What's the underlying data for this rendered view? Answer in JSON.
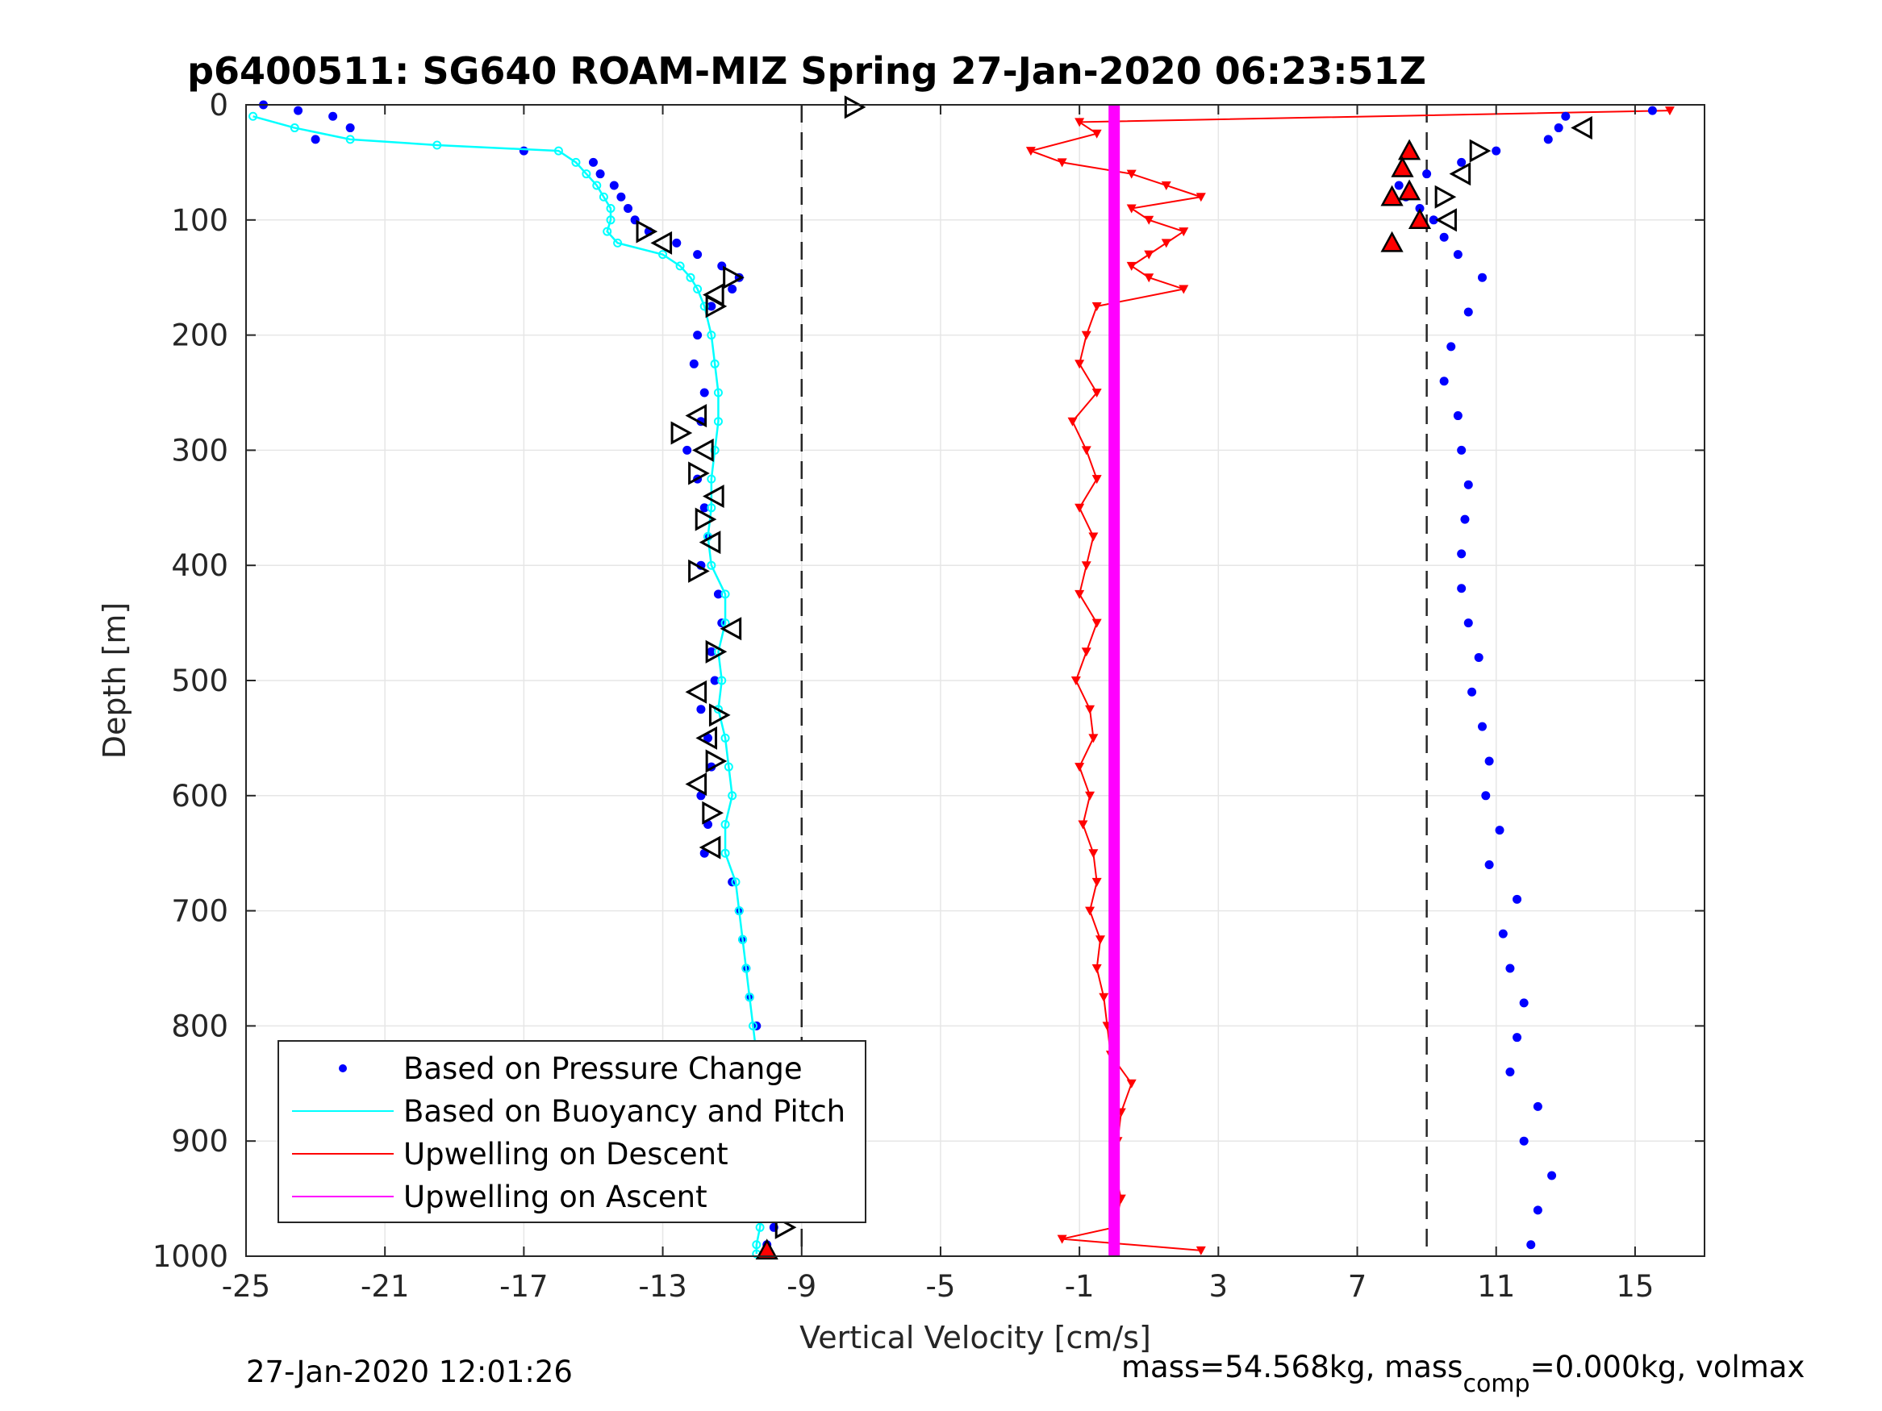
{
  "chart_data": {
    "type": "scatter",
    "title": "p6400511: SG640 ROAM-MIZ Spring 27-Jan-2020 06:23:51Z",
    "xlabel": "Vertical Velocity [cm/s]",
    "ylabel": "Depth [m]",
    "xlim": [
      -25,
      17
    ],
    "ylim": [
      0,
      1000
    ],
    "y_reversed": true,
    "grid": true,
    "x_ticks": [
      "-25",
      "-21",
      "-17",
      "-13",
      "-9",
      "-5",
      "-1",
      "3",
      "7",
      "11",
      "15"
    ],
    "y_ticks": [
      "0",
      "100",
      "200",
      "300",
      "400",
      "500",
      "600",
      "700",
      "800",
      "900",
      "1000"
    ],
    "dashed_reference_lines_x": [
      -9,
      9
    ],
    "legend_placement": "bottom-left",
    "legend": [
      {
        "label": "Based on Pressure Change",
        "color": "#0000ff",
        "marker": "dot"
      },
      {
        "label": "Based on Buoyancy and Pitch",
        "color": "#00ffff",
        "marker": "line"
      },
      {
        "label": "Upwelling on Descent",
        "color": "#ff0000",
        "marker": "line"
      },
      {
        "label": "Upwelling on Ascent",
        "color": "#ff00ff",
        "marker": "line"
      }
    ],
    "series": [
      {
        "name": "Based on Pressure Change",
        "color": "#0000ff",
        "descent": {
          "depth": [
            0,
            5,
            10,
            20,
            30,
            40,
            50,
            60,
            70,
            80,
            90,
            100,
            110,
            120,
            130,
            140,
            150,
            160,
            175,
            200,
            225,
            250,
            275,
            300,
            325,
            350,
            375,
            400,
            425,
            450,
            475,
            500,
            525,
            550,
            575,
            600,
            625,
            650,
            675,
            700,
            725,
            750,
            775,
            800,
            825,
            850,
            875,
            900,
            925,
            950,
            975,
            990
          ],
          "velocity": [
            -24.5,
            -23.5,
            -22.5,
            -22.0,
            -23.0,
            -17.0,
            -15.0,
            -14.8,
            -14.4,
            -14.2,
            -14.0,
            -13.8,
            -13.4,
            -12.6,
            -12.0,
            -11.3,
            -10.8,
            -11.0,
            -11.6,
            -12.0,
            -12.1,
            -11.8,
            -11.9,
            -12.3,
            -12.0,
            -11.8,
            -11.7,
            -11.9,
            -11.4,
            -11.3,
            -11.6,
            -11.5,
            -11.9,
            -11.7,
            -11.6,
            -11.9,
            -11.7,
            -11.8,
            -11.0,
            -10.8,
            -10.7,
            -10.6,
            -10.5,
            -10.3,
            -10.2,
            -10.1,
            -10.0,
            -9.9,
            -9.8,
            -9.7,
            -9.8,
            -10.0
          ]
        },
        "ascent": {
          "depth": [
            990,
            960,
            930,
            900,
            870,
            840,
            810,
            780,
            750,
            720,
            690,
            660,
            630,
            600,
            570,
            540,
            510,
            480,
            450,
            420,
            390,
            360,
            330,
            300,
            270,
            240,
            210,
            180,
            150,
            130,
            115,
            100,
            90,
            80,
            70,
            60,
            50,
            40,
            30,
            20,
            10,
            5
          ],
          "velocity": [
            12.0,
            12.2,
            12.6,
            11.8,
            12.2,
            11.4,
            11.6,
            11.8,
            11.4,
            11.2,
            11.6,
            10.8,
            11.1,
            10.7,
            10.8,
            10.6,
            10.3,
            10.5,
            10.2,
            10.0,
            10.0,
            10.1,
            10.2,
            10.0,
            9.9,
            9.5,
            9.7,
            10.2,
            10.6,
            9.9,
            9.5,
            9.2,
            8.8,
            8.4,
            8.2,
            9.0,
            10.0,
            11.0,
            12.5,
            12.8,
            13.0,
            15.5
          ]
        }
      },
      {
        "name": "Based on Buoyancy and Pitch",
        "color": "#00ffff",
        "depth": [
          10,
          20,
          30,
          35,
          40,
          50,
          60,
          70,
          80,
          90,
          100,
          110,
          120,
          130,
          140,
          150,
          160,
          175,
          200,
          225,
          250,
          275,
          300,
          325,
          350,
          375,
          400,
          425,
          450,
          475,
          500,
          525,
          550,
          575,
          600,
          625,
          650,
          675,
          700,
          725,
          750,
          775,
          800,
          825,
          850,
          875,
          900,
          925,
          950,
          975,
          990,
          998
        ],
        "velocity": [
          -24.8,
          -23.6,
          -22.0,
          -19.5,
          -16.0,
          -15.5,
          -15.2,
          -14.9,
          -14.7,
          -14.5,
          -14.5,
          -14.6,
          -14.3,
          -13.0,
          -12.5,
          -12.2,
          -12.0,
          -11.8,
          -11.6,
          -11.5,
          -11.4,
          -11.4,
          -11.5,
          -11.6,
          -11.6,
          -11.7,
          -11.6,
          -11.2,
          -11.2,
          -11.4,
          -11.3,
          -11.4,
          -11.2,
          -11.1,
          -11.0,
          -11.2,
          -11.2,
          -10.9,
          -10.8,
          -10.7,
          -10.6,
          -10.5,
          -10.4,
          -10.3,
          -10.2,
          -10.1,
          -10.0,
          -10.0,
          -10.1,
          -10.2,
          -10.3,
          -10.3
        ]
      },
      {
        "name": "Upwelling on Descent",
        "color": "#ff0000",
        "depth": [
          5,
          15,
          25,
          40,
          50,
          60,
          70,
          80,
          90,
          100,
          110,
          120,
          130,
          140,
          150,
          160,
          175,
          200,
          225,
          250,
          275,
          300,
          325,
          350,
          375,
          400,
          425,
          450,
          475,
          500,
          525,
          550,
          575,
          600,
          625,
          650,
          675,
          700,
          725,
          750,
          775,
          800,
          825,
          850,
          875,
          900,
          925,
          950,
          975,
          985,
          995
        ],
        "velocity": [
          16.0,
          -1.0,
          -0.5,
          -2.4,
          -1.5,
          0.5,
          1.5,
          2.5,
          0.5,
          1.0,
          2.0,
          1.5,
          1.0,
          0.5,
          1.0,
          2.0,
          -0.5,
          -0.8,
          -1.0,
          -0.5,
          -1.2,
          -0.8,
          -0.5,
          -1.0,
          -0.6,
          -0.8,
          -1.0,
          -0.5,
          -0.8,
          -1.1,
          -0.7,
          -0.6,
          -1.0,
          -0.7,
          -0.9,
          -0.6,
          -0.5,
          -0.7,
          -0.4,
          -0.5,
          -0.3,
          -0.2,
          -0.1,
          0.5,
          0.2,
          0.1,
          0.0,
          0.2,
          0.0,
          -1.5,
          2.5
        ]
      },
      {
        "name": "Upwelling on Ascent",
        "color": "#ff00ff",
        "depth": [
          0,
          100,
          200,
          300,
          400,
          500,
          600,
          700,
          800,
          900,
          1000
        ],
        "velocity": [
          0.0,
          0.0,
          0.0,
          0.0,
          0.0,
          0.0,
          0.0,
          0.0,
          0.0,
          0.0,
          0.0
        ]
      },
      {
        "name": "Pitch markers",
        "color": "#000000",
        "depth": [
          2,
          20,
          40,
          60,
          80,
          100,
          110,
          120,
          150,
          165,
          175,
          270,
          285,
          300,
          320,
          340,
          360,
          380,
          405,
          455,
          475,
          510,
          530,
          550,
          570,
          590,
          615,
          645,
          975
        ],
        "velocity": [
          -7.5,
          13.5,
          10.5,
          10.0,
          9.5,
          9.6,
          -13.5,
          -13.0,
          -11.0,
          -11.5,
          -11.5,
          -12.0,
          -12.5,
          -11.8,
          -12.0,
          -11.5,
          -11.8,
          -11.6,
          -12.0,
          -11.0,
          -11.5,
          -12.0,
          -11.4,
          -11.7,
          -11.5,
          -12.0,
          -11.6,
          -11.6,
          -9.5
        ]
      },
      {
        "name": "Stall markers",
        "color": "#ff0000",
        "depth": [
          40,
          55,
          75,
          80,
          100,
          120,
          995
        ],
        "velocity": [
          8.5,
          8.3,
          8.5,
          8.0,
          8.8,
          8.0,
          -10.0
        ]
      }
    ]
  },
  "footer": {
    "timestamp": "27-Jan-2020 12:01:26",
    "mass_text": "mass=54.568kg, mass",
    "mass_sub": "comp",
    "mass_rest": "=0.000kg, volmax"
  }
}
